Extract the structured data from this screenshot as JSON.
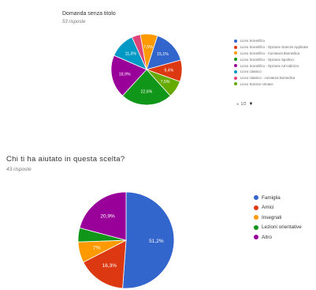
{
  "chart_data": [
    {
      "type": "pie",
      "title": "Domanda senza titolo",
      "subtitle": "53 risposte",
      "colors": [
        "#3366cc",
        "#dc3912",
        "#ff9900",
        "#109618",
        "#990099",
        "#0099c6",
        "#dd4477",
        "#66aa00"
      ],
      "categories": [
        "Liceo Scientifico",
        "Liceo Scientifico - Opzione Scienze Applicate",
        "Liceo Scientifico - Curvatura Biomedica",
        "Liceo Scientifico - Opzione Sportivo",
        "Liceo Scientifico - Opzione Ad Indirizzo",
        "Liceo classico",
        "Liceo classico - curvatura biomedica",
        "Liceo Scienze Umane"
      ],
      "slice_colors": [
        "#3366cc",
        "#dc3912",
        "#66aa00",
        "#109618",
        "#990099",
        "#0099c6",
        "#dd4477",
        "#ff9900"
      ],
      "values": [
        15.1,
        9.4,
        7.5,
        22.6,
        18.9,
        11.3,
        3.8,
        7.5
      ],
      "slice_labels": [
        "15,1%",
        "9,4%",
        "7,5%",
        "22,6%",
        "18,9%",
        "11,3%",
        "",
        "7,5%"
      ],
      "pager": {
        "page": "1/2",
        "prev": "◂",
        "next": "▸",
        "more": "▼"
      }
    },
    {
      "type": "pie",
      "title": "Chi ti ha aiutato in questa scelta?",
      "subtitle": "43 risposte",
      "categories": [
        "Famiglia",
        "Amici",
        "Insegnati",
        "Lezioni orientative",
        "Altro"
      ],
      "colors": [
        "#3366cc",
        "#dc3912",
        "#ff9900",
        "#109618",
        "#990099"
      ],
      "values": [
        51.2,
        16.3,
        7,
        4.7,
        20.9
      ],
      "slice_labels": [
        "51,2%",
        "16,3%",
        "7%",
        "",
        "20,9%"
      ]
    }
  ]
}
